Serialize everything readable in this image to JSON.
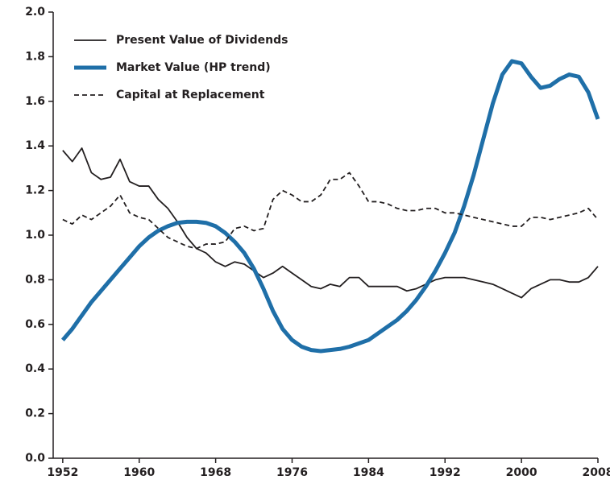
{
  "chart_data": {
    "type": "line",
    "x": [
      1952,
      1953,
      1954,
      1955,
      1956,
      1957,
      1958,
      1959,
      1960,
      1961,
      1962,
      1963,
      1964,
      1965,
      1966,
      1967,
      1968,
      1969,
      1970,
      1971,
      1972,
      1973,
      1974,
      1975,
      1976,
      1977,
      1978,
      1979,
      1980,
      1981,
      1982,
      1983,
      1984,
      1985,
      1986,
      1987,
      1988,
      1989,
      1990,
      1991,
      1992,
      1993,
      1994,
      1995,
      1996,
      1997,
      1998,
      1999,
      2000,
      2001,
      2002,
      2003,
      2004,
      2005,
      2006,
      2007,
      2008
    ],
    "series": [
      {
        "name": "Present Value of Dividends",
        "color": "#231f20",
        "dashed": false,
        "values": [
          1.38,
          1.33,
          1.39,
          1.28,
          1.25,
          1.26,
          1.34,
          1.24,
          1.22,
          1.22,
          1.16,
          1.12,
          1.06,
          0.99,
          0.94,
          0.92,
          0.88,
          0.86,
          0.88,
          0.87,
          0.84,
          0.81,
          0.83,
          0.86,
          0.83,
          0.8,
          0.77,
          0.76,
          0.78,
          0.77,
          0.81,
          0.81,
          0.77,
          0.77,
          0.77,
          0.77,
          0.75,
          0.76,
          0.78,
          0.8,
          0.81,
          0.81,
          0.81,
          0.8,
          0.79,
          0.78,
          0.76,
          0.74,
          0.72,
          0.76,
          0.78,
          0.8,
          0.8,
          0.79,
          0.79,
          0.81,
          0.86
        ]
      },
      {
        "name": "Market Value (HP trend)",
        "color": "#1f6fa8",
        "dashed": false,
        "values": [
          0.53,
          0.58,
          0.64,
          0.7,
          0.75,
          0.8,
          0.85,
          0.9,
          0.95,
          0.99,
          1.02,
          1.04,
          1.055,
          1.06,
          1.06,
          1.055,
          1.04,
          1.01,
          0.97,
          0.92,
          0.85,
          0.76,
          0.66,
          0.58,
          0.53,
          0.5,
          0.485,
          0.48,
          0.485,
          0.49,
          0.5,
          0.515,
          0.53,
          0.56,
          0.59,
          0.62,
          0.66,
          0.71,
          0.77,
          0.84,
          0.92,
          1.01,
          1.13,
          1.27,
          1.43,
          1.59,
          1.72,
          1.78,
          1.77,
          1.71,
          1.66,
          1.67,
          1.7,
          1.72,
          1.71,
          1.64,
          1.52
        ]
      },
      {
        "name": "Capital at Replacement",
        "color": "#231f20",
        "dashed": true,
        "values": [
          1.07,
          1.05,
          1.09,
          1.07,
          1.1,
          1.13,
          1.18,
          1.1,
          1.08,
          1.07,
          1.03,
          0.99,
          0.97,
          0.95,
          0.94,
          0.96,
          0.96,
          0.97,
          1.03,
          1.04,
          1.02,
          1.03,
          1.16,
          1.2,
          1.18,
          1.15,
          1.15,
          1.18,
          1.25,
          1.25,
          1.28,
          1.22,
          1.15,
          1.15,
          1.14,
          1.12,
          1.11,
          1.11,
          1.12,
          1.12,
          1.1,
          1.1,
          1.09,
          1.08,
          1.07,
          1.06,
          1.05,
          1.04,
          1.04,
          1.08,
          1.08,
          1.07,
          1.08,
          1.09,
          1.1,
          1.12,
          1.07
        ]
      }
    ],
    "xlim": [
      1951,
      2008
    ],
    "xticks": [
      1952,
      1960,
      1968,
      1976,
      1984,
      1992,
      2000,
      2008
    ],
    "ylim": [
      0,
      2
    ],
    "yticks": [
      {
        "value": 0,
        "label": "0.0"
      },
      {
        "value": 0.2,
        "label": "0.2"
      },
      {
        "value": 0.4,
        "label": "0.4"
      },
      {
        "value": 0.6,
        "label": "0.6"
      },
      {
        "value": 0.8,
        "label": "0.8"
      },
      {
        "value": 1,
        "label": "1.0"
      },
      {
        "value": 1.2,
        "label": "1.2"
      },
      {
        "value": 1.4,
        "label": "1.4"
      },
      {
        "value": 1.6,
        "label": "1.6"
      },
      {
        "value": 1.8,
        "label": "1.8"
      },
      {
        "value": 2,
        "label": "2.0"
      }
    ],
    "legend": "upper left"
  }
}
